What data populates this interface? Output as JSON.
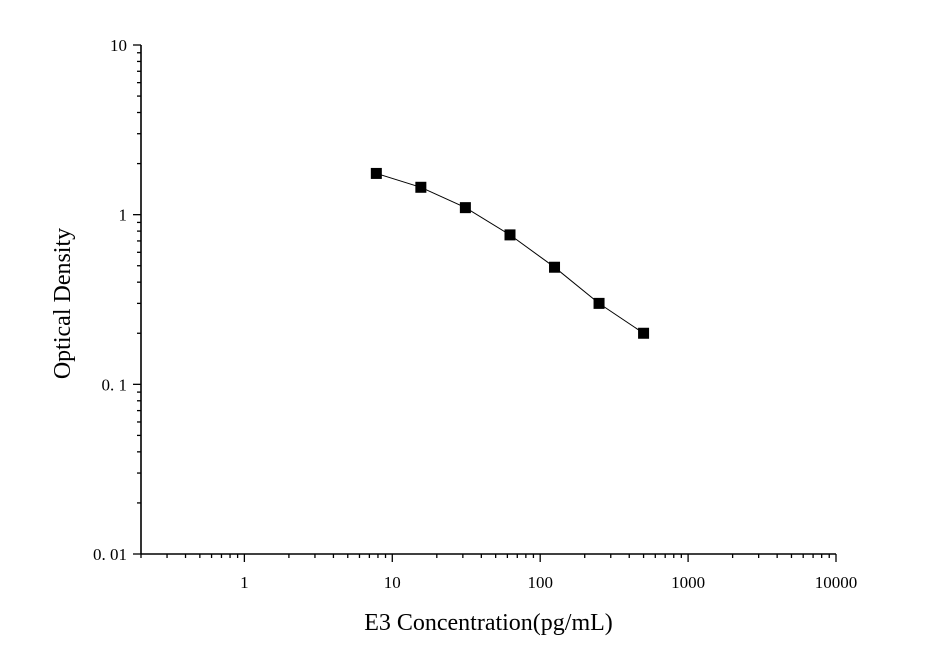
{
  "chart_data": {
    "type": "line",
    "title": "",
    "xlabel": "E3 Concentration(pg/mL)",
    "ylabel": "Optical Density",
    "x_scale": "log",
    "y_scale": "log",
    "xlim": [
      0.2,
      10000
    ],
    "ylim": [
      0.01,
      10
    ],
    "x_ticks": [
      1,
      10,
      100,
      1000,
      10000
    ],
    "x_tick_labels": [
      "1",
      "10",
      "100",
      "1000",
      "10000"
    ],
    "y_ticks": [
      0.01,
      0.1,
      1,
      10
    ],
    "y_tick_labels": [
      "0. 01",
      "0. 1",
      "1",
      "10"
    ],
    "grid": false,
    "marker": "square",
    "line_color": "#000000",
    "marker_color": "#000000",
    "series": [
      {
        "x": [
          7.8,
          15.6,
          31.2,
          62.5,
          125,
          250,
          500
        ],
        "y": [
          1.75,
          1.45,
          1.1,
          0.76,
          0.49,
          0.3,
          0.2
        ]
      }
    ]
  }
}
